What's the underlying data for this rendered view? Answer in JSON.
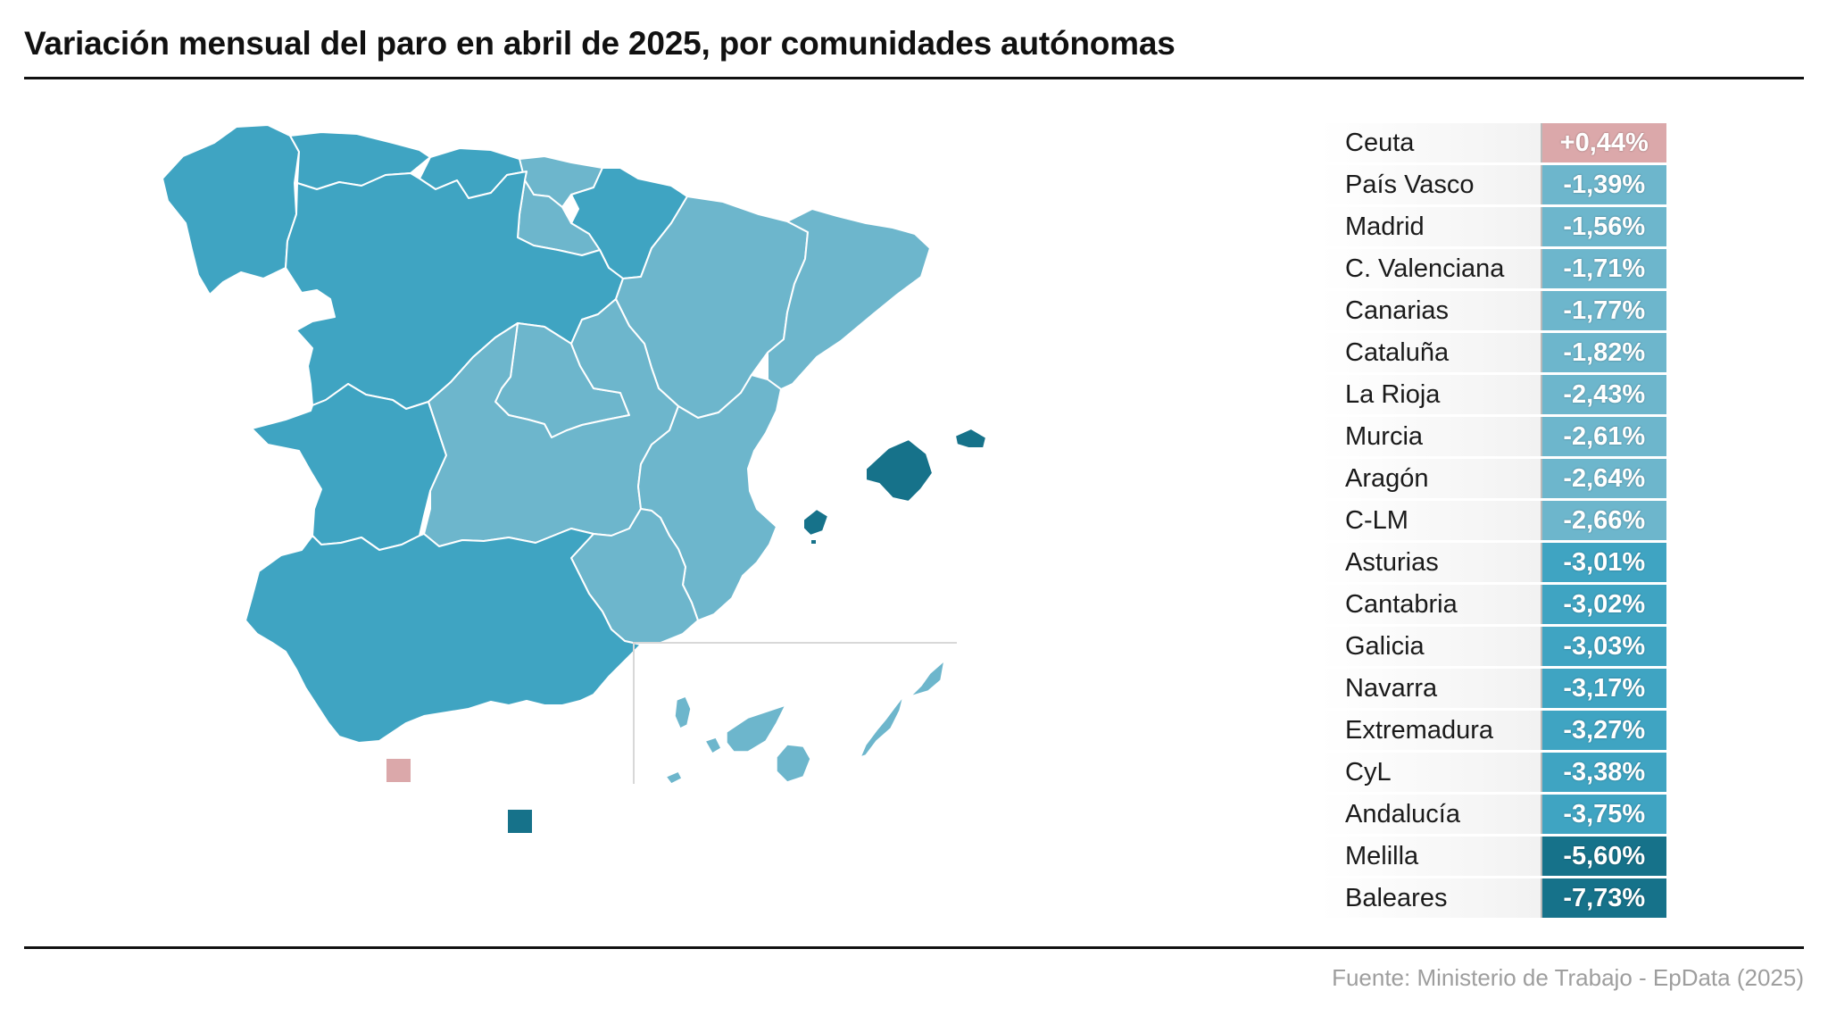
{
  "title": "Variación mensual del paro en abril de 2025, por comunidades autónomas",
  "source": "Fuente: Ministerio de Trabajo - EpData (2025)",
  "colors": {
    "positive": "#dba8aa",
    "low": "#6db6cc",
    "mid": "#3fa4c2",
    "high": "#16728a",
    "border": "#ffffff"
  },
  "regions": [
    {
      "name": "Ceuta",
      "value": "+0,44%",
      "bucket": "positive"
    },
    {
      "name": "País Vasco",
      "value": "-1,39%",
      "bucket": "low"
    },
    {
      "name": "Madrid",
      "value": "-1,56%",
      "bucket": "low"
    },
    {
      "name": "C. Valenciana",
      "value": "-1,71%",
      "bucket": "low"
    },
    {
      "name": "Canarias",
      "value": "-1,77%",
      "bucket": "low"
    },
    {
      "name": "Cataluña",
      "value": "-1,82%",
      "bucket": "low"
    },
    {
      "name": "La Rioja",
      "value": "-2,43%",
      "bucket": "low"
    },
    {
      "name": "Murcia",
      "value": "-2,61%",
      "bucket": "low"
    },
    {
      "name": "Aragón",
      "value": "-2,64%",
      "bucket": "low"
    },
    {
      "name": "C-LM",
      "value": "-2,66%",
      "bucket": "low"
    },
    {
      "name": "Asturias",
      "value": "-3,01%",
      "bucket": "mid"
    },
    {
      "name": "Cantabria",
      "value": "-3,02%",
      "bucket": "mid"
    },
    {
      "name": "Galicia",
      "value": "-3,03%",
      "bucket": "mid"
    },
    {
      "name": "Navarra",
      "value": "-3,17%",
      "bucket": "mid"
    },
    {
      "name": "Extremadura",
      "value": "-3,27%",
      "bucket": "mid"
    },
    {
      "name": "CyL",
      "value": "-3,38%",
      "bucket": "mid"
    },
    {
      "name": "Andalucía",
      "value": "-3,75%",
      "bucket": "mid"
    },
    {
      "name": "Melilla",
      "value": "-5,60%",
      "bucket": "high"
    },
    {
      "name": "Baleares",
      "value": "-7,73%",
      "bucket": "high"
    }
  ]
}
